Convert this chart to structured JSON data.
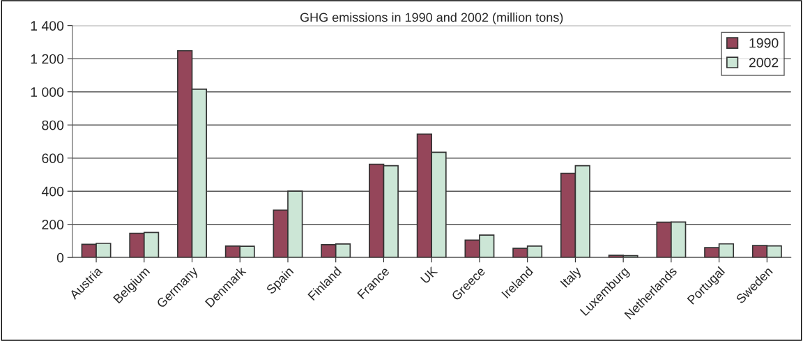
{
  "chart_data": {
    "type": "bar",
    "title": "GHG emissions in 1990 and 2002 (million tons)",
    "categories": [
      "Austria",
      "Belgium",
      "Germany",
      "Denmark",
      "Spain",
      "Finland",
      "France",
      "UK",
      "Greece",
      "Ireland",
      "Italy",
      "Luxemburg",
      "Netherlands",
      "Portugal",
      "Sweden"
    ],
    "series": [
      {
        "name": "1990",
        "color": "#95465a",
        "values": [
          79,
          146,
          1248,
          69,
          286,
          77,
          563,
          745,
          105,
          55,
          508,
          13,
          213,
          59,
          72
        ]
      },
      {
        "name": "2002",
        "color": "#cce6d6",
        "values": [
          85,
          151,
          1016,
          68,
          400,
          81,
          554,
          635,
          135,
          69,
          554,
          11,
          214,
          82,
          70
        ]
      }
    ],
    "ylim": [
      0,
      1400
    ],
    "yticks": [
      0,
      200,
      400,
      600,
      800,
      {
        "value": 1000,
        "label": "1 000"
      },
      {
        "value": 1200,
        "label": "1 200"
      },
      {
        "value": 1400,
        "label": "1 400"
      }
    ],
    "grid": "y",
    "legend": "top right"
  }
}
